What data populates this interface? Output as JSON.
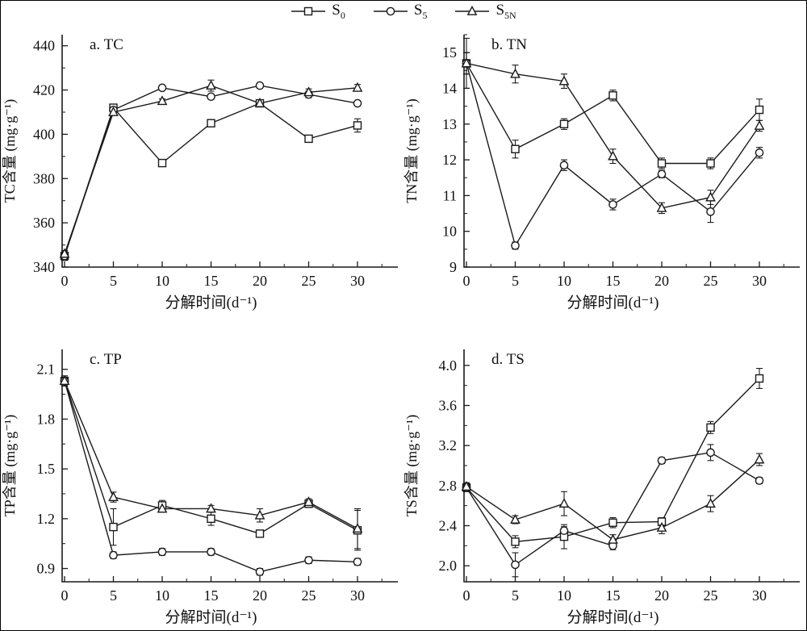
{
  "figure": {
    "background": "#ffffff",
    "line_color": "#1a1a1a",
    "border_color": "#000000"
  },
  "legend": {
    "items": [
      {
        "base": "S",
        "sub": "0",
        "marker": "square"
      },
      {
        "base": "S",
        "sub": "5",
        "marker": "circle"
      },
      {
        "base": "S",
        "sub": "5N",
        "marker": "triangle"
      }
    ]
  },
  "chart_data": [
    {
      "id": "a",
      "type": "line",
      "panel_label": "a. TC",
      "ylabel": "TC含量 (mg·g⁻¹)",
      "xlabel": "分解时间(d⁻¹)",
      "x": [
        0,
        5,
        10,
        15,
        20,
        25,
        30
      ],
      "xtick_labels": [
        "0",
        "5",
        "10",
        "15",
        "20",
        "25",
        "30"
      ],
      "xlim": [
        0,
        32.5
      ],
      "ylim": [
        340,
        445
      ],
      "yticks": [
        340,
        360,
        380,
        400,
        420,
        440
      ],
      "ytick_labels": [
        "340",
        "360",
        "380",
        "400",
        "420",
        "440"
      ],
      "grid": false,
      "series": [
        {
          "name": "S0",
          "marker": "square",
          "values": [
            345,
            412,
            387,
            405,
            414,
            398,
            404
          ],
          "errors": [
            2,
            1.5,
            1.5,
            1,
            1,
            1,
            3
          ]
        },
        {
          "name": "S5",
          "marker": "circle",
          "values": [
            345,
            411,
            421,
            417,
            422,
            418,
            414
          ],
          "errors": [
            1.5,
            1,
            1,
            1,
            1,
            1.5,
            1
          ]
        },
        {
          "name": "S5N",
          "marker": "triangle",
          "values": [
            346,
            410,
            415,
            422,
            414,
            419,
            421
          ],
          "errors": [
            1.5,
            1,
            1,
            2.5,
            1,
            1.5,
            1.5
          ]
        }
      ]
    },
    {
      "id": "b",
      "type": "line",
      "panel_label": "b. TN",
      "ylabel": "TN含量 (mg·g⁻¹)",
      "xlabel": "分解时间(d⁻¹)",
      "x": [
        0,
        5,
        10,
        15,
        20,
        25,
        30
      ],
      "xtick_labels": [
        "0",
        "5",
        "10",
        "15",
        "20",
        "25",
        "30"
      ],
      "xlim": [
        0,
        32.5
      ],
      "ylim": [
        9,
        15.5
      ],
      "yticks": [
        9,
        10,
        11,
        12,
        13,
        14,
        15
      ],
      "ytick_labels": [
        "9",
        "10",
        "11",
        "12",
        "13",
        "14",
        "15"
      ],
      "grid": false,
      "series": [
        {
          "name": "S0",
          "marker": "square",
          "values": [
            14.7,
            12.3,
            13.0,
            13.8,
            11.9,
            11.9,
            13.4
          ],
          "errors": [
            0.7,
            0.25,
            0.15,
            0.15,
            0.15,
            0.15,
            0.3
          ]
        },
        {
          "name": "S5",
          "marker": "circle",
          "values": [
            14.7,
            9.6,
            11.85,
            10.75,
            11.6,
            10.55,
            12.2
          ],
          "errors": [
            0.3,
            0.1,
            0.15,
            0.15,
            0.1,
            0.3,
            0.15
          ]
        },
        {
          "name": "S5N",
          "marker": "triangle",
          "values": [
            14.7,
            14.4,
            14.2,
            12.1,
            10.65,
            10.95,
            12.95
          ],
          "errors": [
            0.3,
            0.25,
            0.2,
            0.2,
            0.15,
            0.2,
            0.15
          ]
        }
      ]
    },
    {
      "id": "c",
      "type": "line",
      "panel_label": "c. TP",
      "ylabel": "TP含量 (mg·g⁻¹)",
      "xlabel": "分解时间(d⁻¹)",
      "x": [
        0,
        5,
        10,
        15,
        20,
        25,
        30
      ],
      "xtick_labels": [
        "0",
        "5",
        "10",
        "15",
        "20",
        "25",
        "30"
      ],
      "xlim": [
        0,
        32.5
      ],
      "ylim": [
        0.82,
        2.22
      ],
      "yticks": [
        0.9,
        1.2,
        1.5,
        1.8,
        2.1
      ],
      "ytick_labels": [
        "0.9",
        "1.2",
        "1.5",
        "1.8",
        "2.1"
      ],
      "grid": false,
      "series": [
        {
          "name": "S0",
          "marker": "square",
          "values": [
            2.03,
            1.15,
            1.28,
            1.2,
            1.11,
            1.29,
            1.13
          ],
          "errors": [
            0.03,
            0.11,
            0.03,
            0.04,
            0.02,
            0.02,
            0.12
          ]
        },
        {
          "name": "S5",
          "marker": "circle",
          "values": [
            2.03,
            0.98,
            1.0,
            1.0,
            0.88,
            0.95,
            0.94
          ],
          "errors": [
            0.03,
            0.02,
            0.02,
            0.02,
            0.02,
            0.02,
            0.02
          ]
        },
        {
          "name": "S5N",
          "marker": "triangle",
          "values": [
            2.03,
            1.33,
            1.26,
            1.26,
            1.22,
            1.3,
            1.14
          ],
          "errors": [
            0.03,
            0.03,
            0.02,
            0.02,
            0.04,
            0.02,
            0.12
          ]
        }
      ]
    },
    {
      "id": "d",
      "type": "line",
      "panel_label": "d. TS",
      "ylabel": "TS含量 (mg·g⁻¹)",
      "xlabel": "分解时间(d⁻¹)",
      "x": [
        0,
        5,
        10,
        15,
        20,
        25,
        30
      ],
      "xtick_labels": [
        "0",
        "5",
        "10",
        "15",
        "20",
        "25",
        "30"
      ],
      "xlim": [
        0,
        32.5
      ],
      "ylim": [
        1.84,
        4.16
      ],
      "yticks": [
        2.0,
        2.4,
        2.8,
        3.2,
        3.6,
        4.0
      ],
      "ytick_labels": [
        "2.0",
        "2.4",
        "2.8",
        "3.2",
        "3.6",
        "4.0"
      ],
      "grid": false,
      "series": [
        {
          "name": "S0",
          "marker": "square",
          "values": [
            2.78,
            2.24,
            2.29,
            2.43,
            2.44,
            3.38,
            3.87
          ],
          "errors": [
            0.04,
            0.06,
            0.12,
            0.05,
            0.04,
            0.06,
            0.1
          ]
        },
        {
          "name": "S5",
          "marker": "circle",
          "values": [
            2.78,
            2.01,
            2.35,
            2.2,
            3.05,
            3.13,
            2.85
          ],
          "errors": [
            0.04,
            0.12,
            0.04,
            0.04,
            0.03,
            0.08,
            0.03
          ]
        },
        {
          "name": "S5N",
          "marker": "triangle",
          "values": [
            2.79,
            2.46,
            2.62,
            2.26,
            2.38,
            2.62,
            3.06
          ],
          "errors": [
            0.04,
            0.04,
            0.12,
            0.05,
            0.06,
            0.08,
            0.06
          ]
        }
      ]
    }
  ]
}
